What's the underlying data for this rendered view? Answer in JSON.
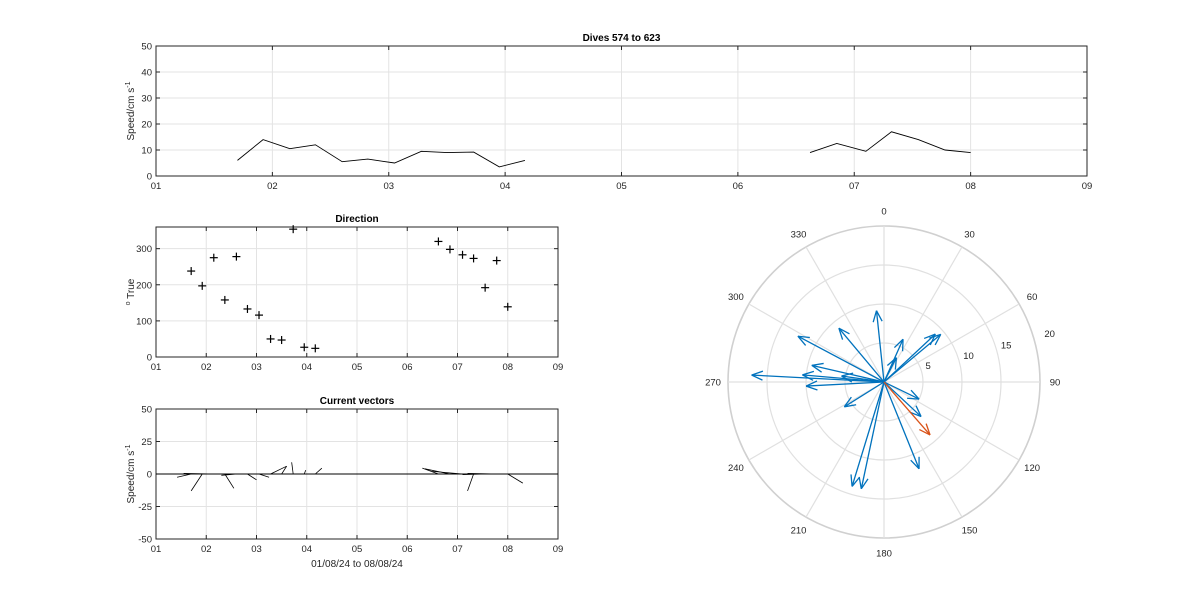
{
  "chart_data": [
    {
      "id": "speed",
      "type": "line",
      "title": "Dives 574 to 623",
      "xlabel": "",
      "ylabel": "Speed/cm s",
      "ylabel_sup": "-1",
      "xlim": [
        1,
        9
      ],
      "ylim": [
        0,
        50
      ],
      "xticks": [
        1,
        2,
        3,
        4,
        5,
        6,
        7,
        8,
        9
      ],
      "xtick_labels": [
        "01",
        "02",
        "03",
        "04",
        "05",
        "06",
        "07",
        "08",
        "09"
      ],
      "yticks": [
        0,
        10,
        20,
        30,
        40,
        50
      ],
      "grid": true,
      "series": [
        {
          "color": "#000000",
          "segments": [
            [
              [
                1.7,
                6
              ],
              [
                1.92,
                14
              ],
              [
                2.15,
                10.5
              ],
              [
                2.37,
                12
              ],
              [
                2.6,
                5.5
              ],
              [
                2.82,
                6.5
              ],
              [
                3.05,
                5
              ],
              [
                3.28,
                9.5
              ],
              [
                3.5,
                9
              ],
              [
                3.73,
                9.2
              ],
              [
                3.95,
                3.5
              ],
              [
                4.17,
                6
              ]
            ],
            [
              [
                6.62,
                9
              ],
              [
                6.85,
                12.5
              ],
              [
                7.1,
                9.5
              ],
              [
                7.32,
                17
              ],
              [
                7.55,
                14
              ],
              [
                7.78,
                10
              ],
              [
                8.0,
                9
              ]
            ]
          ]
        }
      ]
    },
    {
      "id": "direction",
      "type": "scatter",
      "title": "Direction",
      "xlabel": "",
      "ylabel": "True",
      "ylabel_prefix": "o",
      "xlim": [
        1,
        9
      ],
      "ylim": [
        0,
        360
      ],
      "xticks": [
        1,
        2,
        3,
        4,
        5,
        6,
        7,
        8,
        9
      ],
      "xtick_labels": [
        "01",
        "02",
        "03",
        "04",
        "05",
        "06",
        "07",
        "08",
        "09"
      ],
      "yticks": [
        0,
        100,
        200,
        300
      ],
      "grid": true,
      "marker": "+",
      "points": [
        [
          1.7,
          238
        ],
        [
          1.92,
          197
        ],
        [
          2.15,
          275
        ],
        [
          2.37,
          158
        ],
        [
          2.6,
          278
        ],
        [
          2.82,
          133
        ],
        [
          3.05,
          116
        ],
        [
          3.28,
          50
        ],
        [
          3.5,
          47
        ],
        [
          3.73,
          354
        ],
        [
          3.95,
          27
        ],
        [
          4.17,
          24
        ],
        [
          6.62,
          320
        ],
        [
          6.85,
          298
        ],
        [
          7.1,
          283
        ],
        [
          7.32,
          273
        ],
        [
          7.55,
          192
        ],
        [
          7.78,
          267
        ],
        [
          8.0,
          139
        ]
      ]
    },
    {
      "id": "vectors",
      "type": "line",
      "title": "Current vectors",
      "xlabel": "01/08/24 to 08/08/24",
      "ylabel": "Speed/cm s",
      "ylabel_sup": "-1",
      "xlim": [
        1,
        9
      ],
      "ylim": [
        -50,
        50
      ],
      "xticks": [
        1,
        2,
        3,
        4,
        5,
        6,
        7,
        8,
        9
      ],
      "xtick_labels": [
        "01",
        "02",
        "03",
        "04",
        "05",
        "06",
        "07",
        "08",
        "09"
      ],
      "yticks": [
        -50,
        -25,
        0,
        25,
        50
      ],
      "grid": true,
      "segments": [
        [
          1.7,
          0,
          1.42,
          -2.5
        ],
        [
          1.92,
          0,
          1.7,
          -13
        ],
        [
          2.15,
          0,
          1.55,
          0.5
        ],
        [
          2.37,
          0,
          2.55,
          -11
        ],
        [
          2.6,
          0,
          2.3,
          -1
        ],
        [
          2.82,
          0,
          3.0,
          -4.5
        ],
        [
          3.05,
          0,
          3.25,
          -2.5
        ],
        [
          3.28,
          0,
          3.6,
          6
        ],
        [
          3.5,
          0,
          3.6,
          6
        ],
        [
          3.73,
          0,
          3.7,
          9
        ],
        [
          3.95,
          0,
          3.98,
          3
        ],
        [
          4.17,
          0,
          4.3,
          4.5
        ],
        [
          6.62,
          0,
          6.3,
          4.5
        ],
        [
          6.85,
          0,
          6.35,
          4
        ],
        [
          7.1,
          0,
          6.5,
          2
        ],
        [
          7.32,
          0,
          7.2,
          -13
        ],
        [
          7.55,
          0,
          7.1,
          -0.5
        ],
        [
          7.78,
          0,
          7.2,
          0.5
        ],
        [
          8.0,
          0,
          8.3,
          -7
        ]
      ],
      "series_color": "#000000"
    },
    {
      "id": "polar",
      "type": "polar",
      "theta_zero": "top",
      "theta_direction": "clockwise",
      "theta_ticks": [
        0,
        30,
        60,
        90,
        120,
        150,
        180,
        210,
        240,
        270,
        300,
        330
      ],
      "r_ticks": [
        5,
        10,
        15,
        20
      ],
      "rlim": [
        0,
        20
      ],
      "grid": true,
      "vectors": [
        {
          "dir": 238,
          "mag": 6,
          "color": "#0072bd"
        },
        {
          "dir": 197,
          "mag": 14,
          "color": "#0072bd"
        },
        {
          "dir": 275,
          "mag": 10.5,
          "color": "#0072bd"
        },
        {
          "dir": 158,
          "mag": 12,
          "color": "#0072bd"
        },
        {
          "dir": 278,
          "mag": 5.5,
          "color": "#0072bd"
        },
        {
          "dir": 133,
          "mag": 6.5,
          "color": "#0072bd"
        },
        {
          "dir": 116,
          "mag": 5,
          "color": "#0072bd"
        },
        {
          "dir": 50,
          "mag": 9.5,
          "color": "#0072bd"
        },
        {
          "dir": 47,
          "mag": 9,
          "color": "#0072bd"
        },
        {
          "dir": 354,
          "mag": 9.2,
          "color": "#0072bd"
        },
        {
          "dir": 27,
          "mag": 3.5,
          "color": "#0072bd"
        },
        {
          "dir": 24,
          "mag": 6,
          "color": "#0072bd"
        },
        {
          "dir": 320,
          "mag": 9,
          "color": "#0072bd"
        },
        {
          "dir": 298,
          "mag": 12.5,
          "color": "#0072bd"
        },
        {
          "dir": 283,
          "mag": 9.5,
          "color": "#0072bd"
        },
        {
          "dir": 273,
          "mag": 17,
          "color": "#0072bd"
        },
        {
          "dir": 192,
          "mag": 14,
          "color": "#0072bd"
        },
        {
          "dir": 267,
          "mag": 10,
          "color": "#0072bd"
        },
        {
          "dir": 139,
          "mag": 9,
          "color": "#d95319"
        }
      ]
    }
  ]
}
